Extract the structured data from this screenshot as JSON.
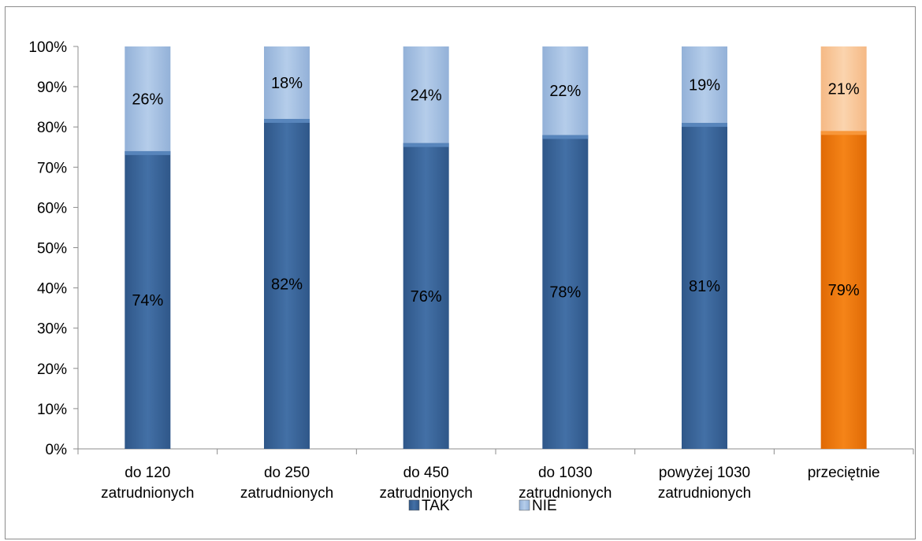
{
  "chart_data": {
    "type": "bar",
    "stacked": true,
    "percent_stacked": true,
    "categories": [
      [
        "do 120",
        "zatrudnionych"
      ],
      [
        "do 250",
        "zatrudnionych"
      ],
      [
        "do 450",
        "zatrudnionych"
      ],
      [
        "do 1030",
        "zatrudnionych"
      ],
      [
        "powyżej 1030",
        "zatrudnionych"
      ],
      [
        "przeciętnie"
      ]
    ],
    "series": [
      {
        "name": "TAK",
        "values": [
          74,
          82,
          76,
          78,
          81,
          79
        ],
        "labels": [
          "74%",
          "82%",
          "76%",
          "78%",
          "81%",
          "79%"
        ]
      },
      {
        "name": "NIE",
        "values": [
          26,
          18,
          24,
          22,
          19,
          21
        ],
        "labels": [
          "26%",
          "18%",
          "24%",
          "22%",
          "19%",
          "21%"
        ]
      }
    ],
    "highlight_category_index": 5,
    "colors": {
      "TAK": "#3f6a9e",
      "NIE": "#a9c3e3",
      "TAK_highlight": "#f07a10",
      "NIE_highlight": "#f9c99a"
    },
    "yticks": [
      "0%",
      "10%",
      "20%",
      "30%",
      "40%",
      "50%",
      "60%",
      "70%",
      "80%",
      "90%",
      "100%"
    ],
    "ylim": [
      0,
      100
    ],
    "grid": false,
    "legend_position": "bottom",
    "title": "",
    "xlabel": "",
    "ylabel": ""
  }
}
